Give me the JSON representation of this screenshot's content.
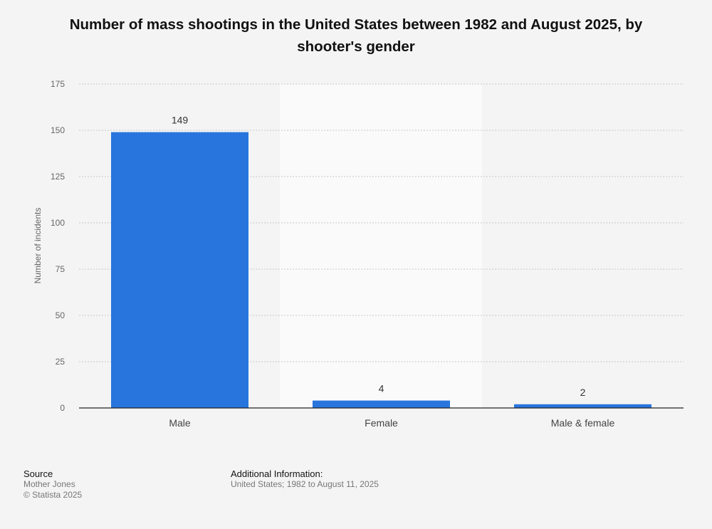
{
  "chart_data": {
    "type": "bar",
    "title": "Number of mass shootings in the United States between 1982 and August 2025, by shooter's gender",
    "xlabel": "",
    "ylabel": "Number of incidents",
    "categories": [
      "Male",
      "Female",
      "Male & female"
    ],
    "values": [
      149,
      4,
      2
    ],
    "ylim": [
      0,
      175
    ],
    "yticks": [
      0,
      25,
      50,
      75,
      100,
      125,
      150,
      175
    ],
    "grid": true,
    "bar_color": "#2876dd"
  },
  "footer": {
    "source_heading": "Source",
    "source_text": "Mother Jones",
    "copyright": "© Statista 2025",
    "info_heading": "Additional Information:",
    "info_text": "United States; 1982 to August 11, 2025"
  }
}
